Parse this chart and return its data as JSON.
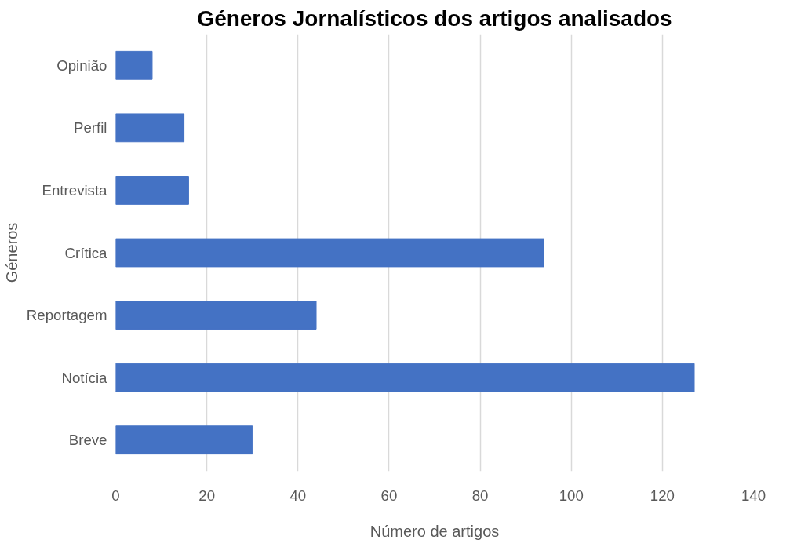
{
  "chart_data": {
    "type": "bar",
    "orientation": "horizontal",
    "title": "Géneros Jornalísticos dos artigos analisados",
    "xlabel": "Número de artigos",
    "ylabel": "Géneros",
    "categories": [
      "Opinião",
      "Perfil",
      "Entrevista",
      "Crítica",
      "Reportagem",
      "Notícia",
      "Breve"
    ],
    "values": [
      8,
      15,
      16,
      94,
      44,
      127,
      30
    ],
    "color": "#4472c4",
    "xlim": [
      0,
      140
    ],
    "xticks": [
      0,
      20,
      40,
      60,
      80,
      100,
      120,
      140
    ],
    "grid": "x"
  }
}
